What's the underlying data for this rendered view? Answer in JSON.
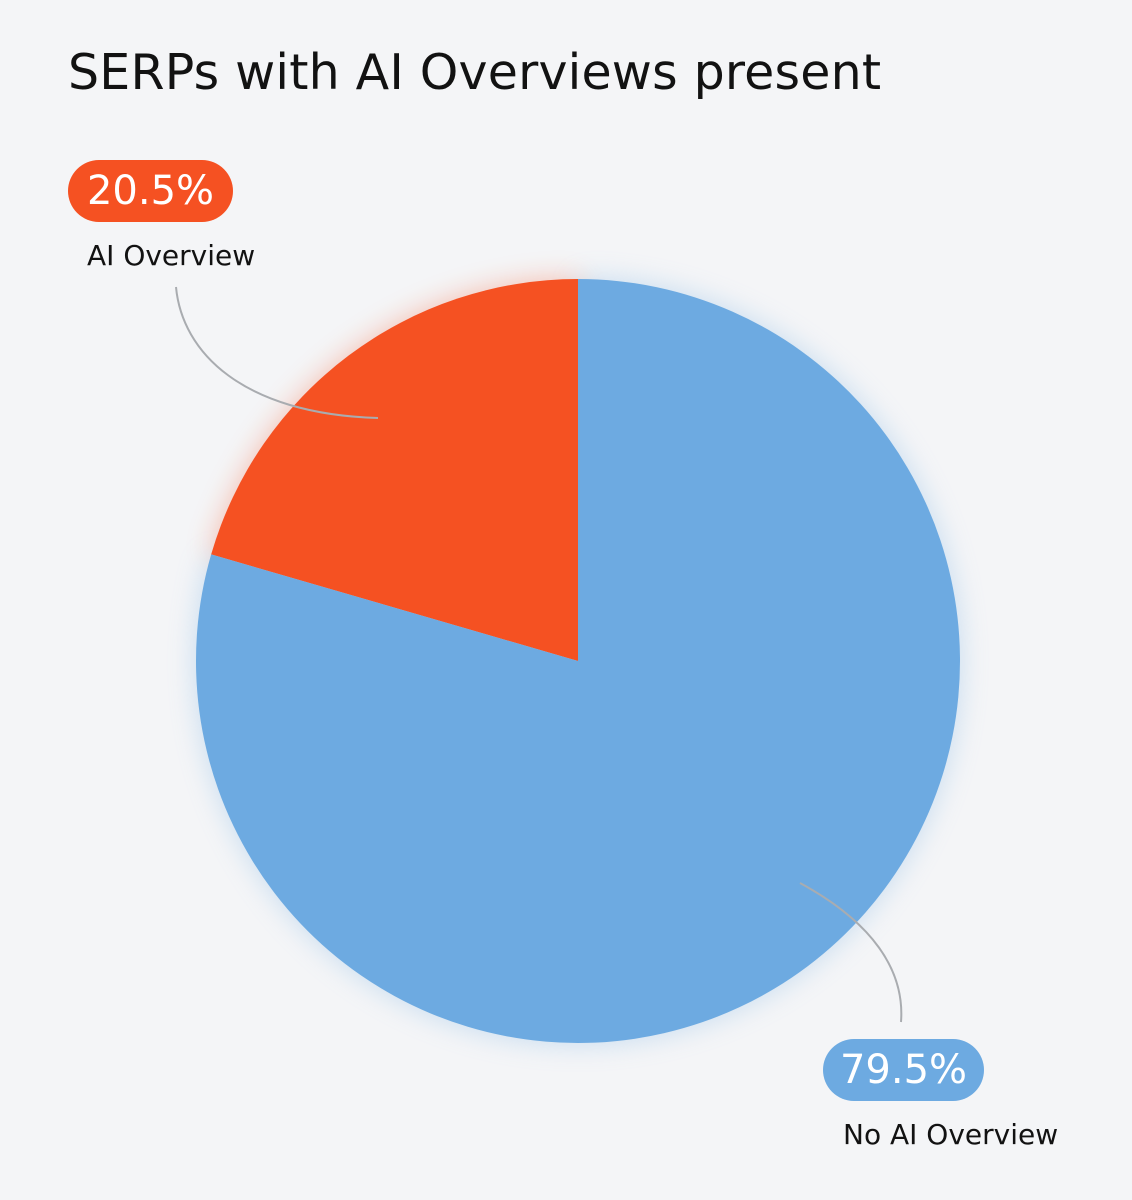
{
  "chart_data": {
    "type": "pie",
    "title": "SERPs with AI Overviews present",
    "start_angle": "12 o'clock, counter-clockwise for first slice",
    "slices": [
      {
        "label": "AI Overview",
        "value": 20.5,
        "value_label": "20.5%",
        "color": "#f55122"
      },
      {
        "label": "No AI Overview",
        "value": 79.5,
        "value_label": "79.5%",
        "color": "#6daae1"
      }
    ]
  }
}
